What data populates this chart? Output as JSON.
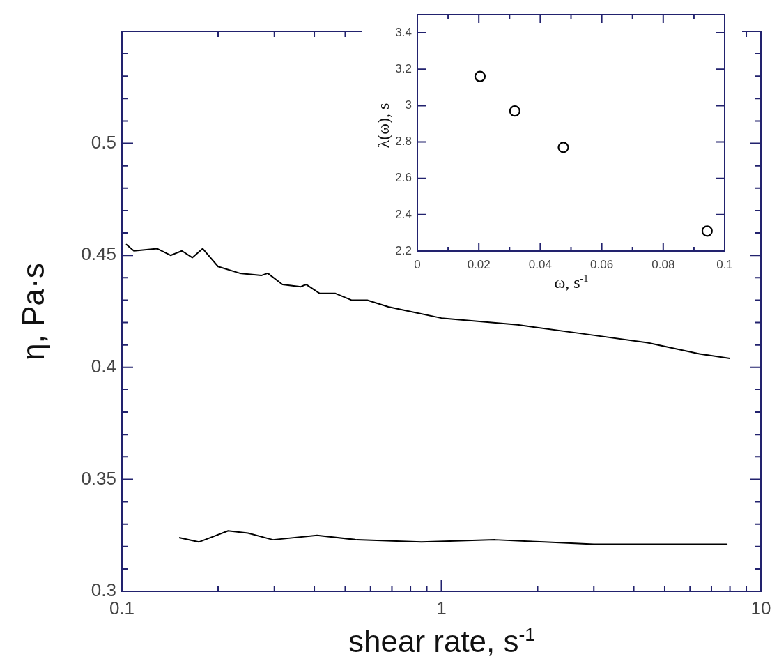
{
  "chart_data": [
    {
      "type": "line",
      "xlabel": "shear rate, s$^{-1}$",
      "ylabel": "η, Pa·s",
      "log": "x",
      "marker": "none",
      "legend": false,
      "xlim": [
        0.1,
        10
      ],
      "xticks": [
        0.1,
        {
          "value": 0.2,
          "label": null
        },
        {
          "value": 0.3,
          "label": null
        },
        {
          "value": 0.4,
          "label": null
        },
        {
          "value": 0.5,
          "label": null
        },
        {
          "value": 0.6,
          "label": null
        },
        {
          "value": 0.7,
          "label": null
        },
        {
          "value": 0.8,
          "label": null
        },
        {
          "value": 0.9,
          "label": null
        },
        1,
        {
          "value": 2,
          "label": null
        },
        {
          "value": 3,
          "label": null
        },
        {
          "value": 4,
          "label": null
        },
        {
          "value": 5,
          "label": null
        },
        {
          "value": 6,
          "label": null
        },
        {
          "value": 7,
          "label": null
        },
        {
          "value": 8,
          "label": null
        },
        {
          "value": 9,
          "label": null
        },
        10
      ],
      "ylim": [
        0.3,
        0.55
      ],
      "yticks": [
        0.3,
        {
          "value": 0.31,
          "label": null
        },
        {
          "value": 0.32,
          "label": null
        },
        {
          "value": 0.33,
          "label": null
        },
        {
          "value": 0.34,
          "label": null
        },
        0.35,
        {
          "value": 0.36,
          "label": null
        },
        {
          "value": 0.37,
          "label": null
        },
        {
          "value": 0.38,
          "label": null
        },
        {
          "value": 0.39,
          "label": null
        },
        0.4,
        {
          "value": 0.41,
          "label": null
        },
        {
          "value": 0.42,
          "label": null
        },
        {
          "value": 0.43,
          "label": null
        },
        {
          "value": 0.44,
          "label": null
        },
        0.45,
        {
          "value": 0.46,
          "label": null
        },
        {
          "value": 0.47,
          "label": null
        },
        {
          "value": 0.48,
          "label": null
        },
        {
          "value": 0.49,
          "label": null
        },
        0.5,
        {
          "value": 0.51,
          "label": null
        },
        {
          "value": 0.52,
          "label": null
        },
        {
          "value": 0.53,
          "label": null
        },
        {
          "value": 0.54,
          "label": null
        }
      ],
      "series": [
        {
          "color": "#000000",
          "x": [
            0.103,
            0.109,
            0.129,
            0.142,
            0.154,
            0.166,
            0.179,
            0.2,
            0.234,
            0.273,
            0.286,
            0.318,
            0.363,
            0.377,
            0.416,
            0.466,
            0.523,
            0.586,
            0.682,
            0.795,
            1.0,
            1.73,
            2.77,
            4.42,
            6.42,
            7.99
          ],
          "values": [
            0.455,
            0.452,
            0.453,
            0.45,
            0.452,
            0.449,
            0.453,
            0.445,
            0.442,
            0.441,
            0.442,
            0.437,
            0.436,
            0.437,
            0.433,
            0.433,
            0.43,
            0.43,
            0.427,
            0.425,
            0.422,
            0.419,
            0.415,
            0.411,
            0.406,
            0.404
          ]
        },
        {
          "color": "#000000",
          "x": [
            0.151,
            0.174,
            0.215,
            0.248,
            0.297,
            0.408,
            0.544,
            0.866,
            1.47,
            2.1,
            3.0,
            4.28,
            7.86
          ],
          "values": [
            0.324,
            0.322,
            0.327,
            0.326,
            0.323,
            0.325,
            0.323,
            0.322,
            0.323,
            0.322,
            0.321,
            0.321,
            0.321
          ]
        }
      ]
    },
    {
      "type": "scatter",
      "xlabel": "ω, s$^{-1}$",
      "ylabel": "λ(ω), s",
      "marker": "circle",
      "legend": false,
      "xlim": [
        0,
        0.1
      ],
      "xticks": [
        0,
        {
          "value": 0.01,
          "label": null
        },
        0.02,
        {
          "value": 0.03,
          "label": null
        },
        0.04,
        {
          "value": 0.05,
          "label": null
        },
        0.06,
        {
          "value": 0.07,
          "label": null
        },
        0.08,
        {
          "value": 0.09,
          "label": null
        },
        0.1
      ],
      "ylim": [
        2.2,
        3.5
      ],
      "yticks": [
        2.2,
        2.4,
        2.6,
        2.8,
        3,
        3.2,
        3.4
      ],
      "series": [
        {
          "color": "#000000",
          "x": [
            0.0204,
            0.0317,
            0.0475,
            0.0943
          ],
          "values": [
            3.16,
            2.97,
            2.77,
            2.31
          ]
        }
      ]
    }
  ]
}
